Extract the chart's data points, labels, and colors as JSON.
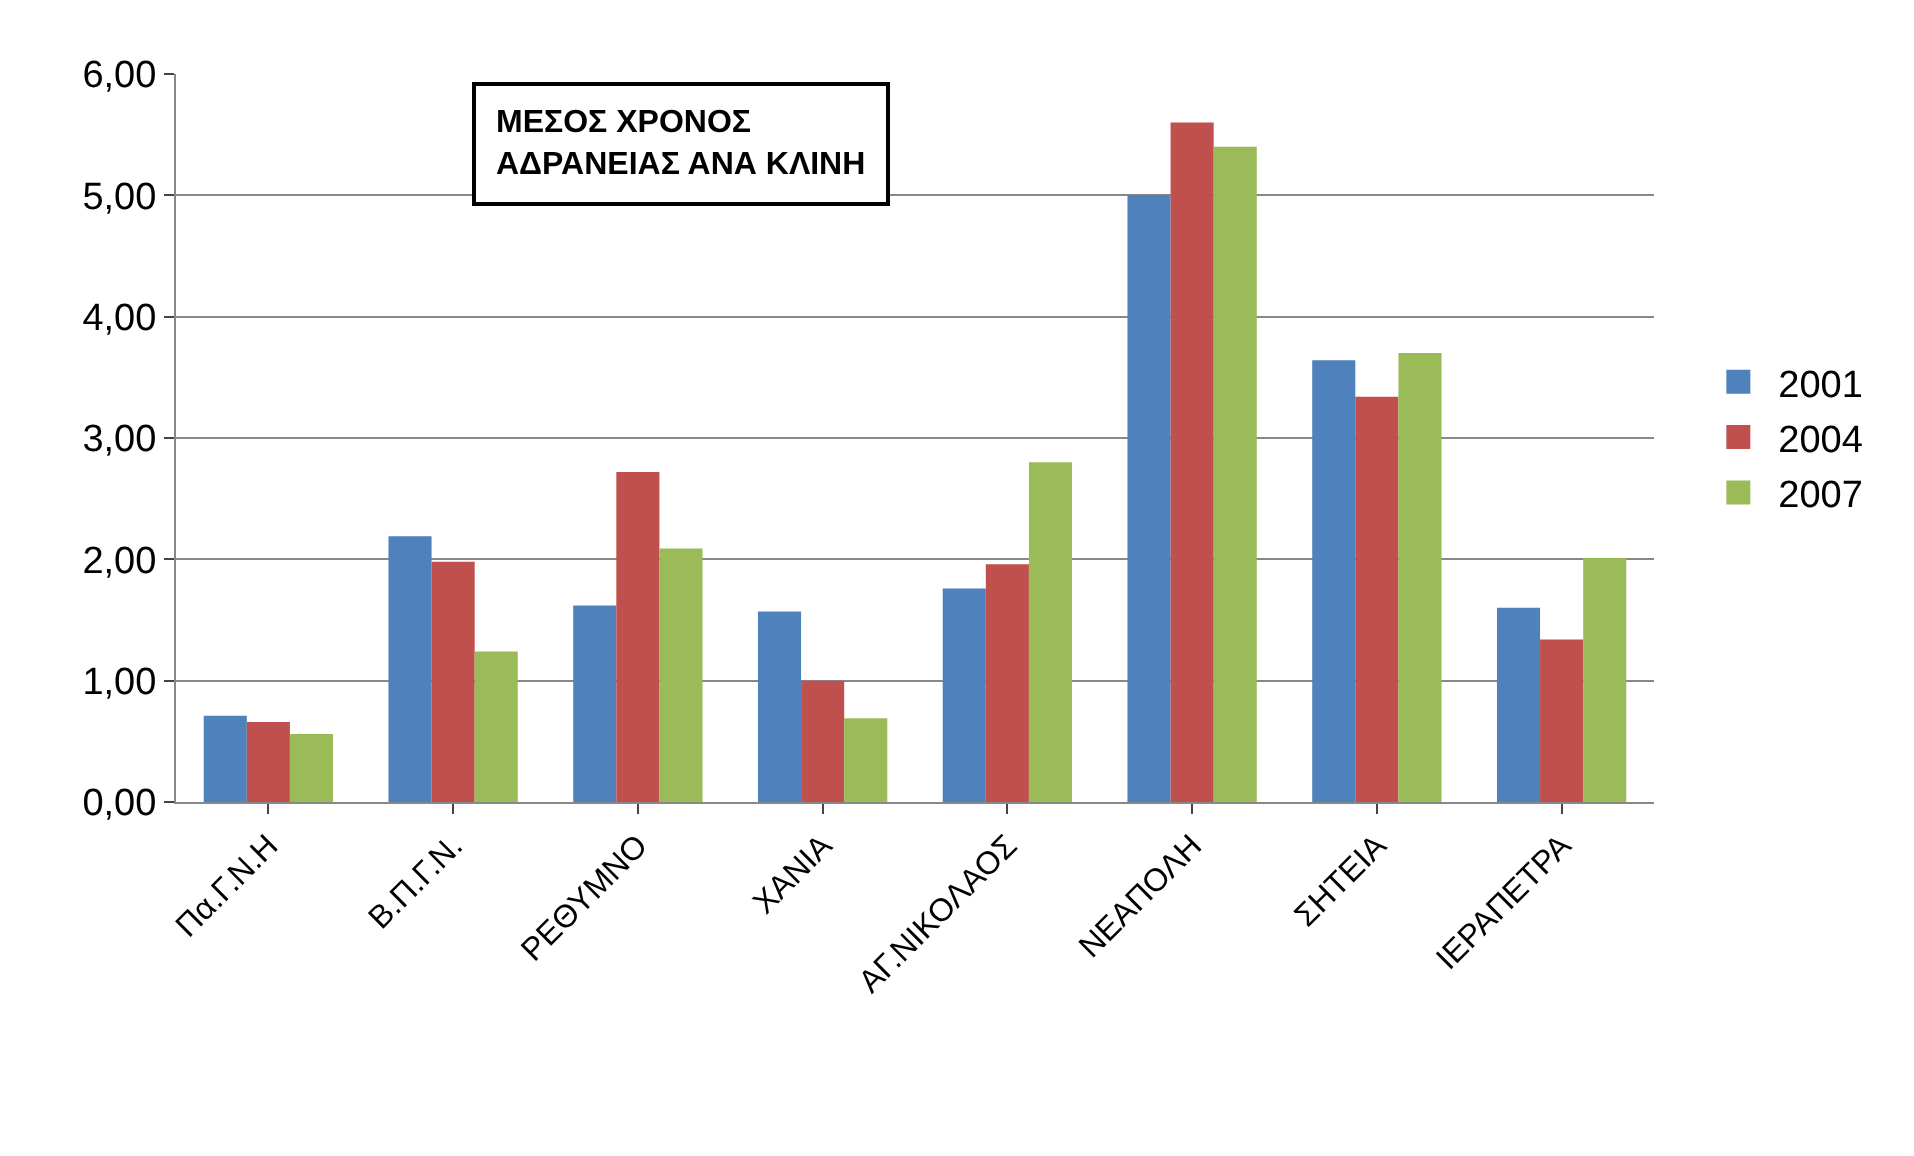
{
  "chart_data": {
    "type": "bar",
    "title": "ΜΕΣΟΣ ΧΡΟΝΟΣ ΑΔΡΑΝΕΙΑΣ ΑΝΑ ΚΛΙΝΗ",
    "categories": [
      "Πα.Γ.Ν.Η",
      "Β.Π.Γ.Ν.",
      "ΡΕΘΥΜΝΟ",
      "ΧΑΝΙΑ",
      "ΑΓ.ΝΙΚΟΛΑΟΣ",
      "ΝΕΑΠΟΛΗ",
      "ΣΗΤΕΙΑ",
      "ΙΕΡΑΠΕΤΡΑ"
    ],
    "series": [
      {
        "name": "2001",
        "color": "#4f81bd",
        "values": [
          0.71,
          2.19,
          1.62,
          1.57,
          1.76,
          5.0,
          3.64,
          1.6
        ]
      },
      {
        "name": "2004",
        "color": "#c0504d",
        "values": [
          0.66,
          1.98,
          2.72,
          1.0,
          1.96,
          5.6,
          3.34,
          1.34
        ]
      },
      {
        "name": "2007",
        "color": "#9bbb59",
        "values": [
          0.56,
          1.24,
          2.09,
          0.69,
          2.8,
          5.4,
          3.7,
          2.01
        ]
      }
    ],
    "ylim": [
      0,
      6
    ],
    "yticks": [
      {
        "value": 0,
        "label": "0,00"
      },
      {
        "value": 1,
        "label": "1,00"
      },
      {
        "value": 2,
        "label": "2,00"
      },
      {
        "value": 3,
        "label": "3,00"
      },
      {
        "value": 4,
        "label": "4,00"
      },
      {
        "value": 5,
        "label": "5,00"
      },
      {
        "value": 6,
        "label": "6,00"
      }
    ],
    "grid": "y",
    "legend": "right"
  }
}
